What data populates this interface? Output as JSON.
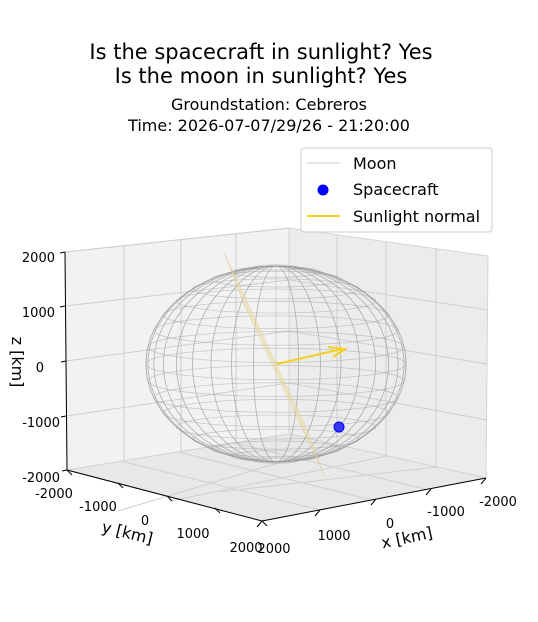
{
  "chart_data": {
    "type": "scatter",
    "projection": "3d",
    "title_line1": "Is the spacecraft in sunlight? Yes",
    "title_line2": "Is the moon in sunlight? Yes",
    "subtitle_line1": "Groundstation: Cebreros",
    "subtitle_line2": "Time: 2026-07-07/29/26 - 21:20:00",
    "xlabel": "x [km]",
    "ylabel": "y [km]",
    "zlabel": "z [km]",
    "xlim": [
      -2000,
      2000
    ],
    "ylim": [
      -2000,
      2000
    ],
    "zlim": [
      -2000,
      2000
    ],
    "x_ticks": [
      "-2000",
      "-1000",
      "0",
      "1000",
      "2000"
    ],
    "y_ticks": [
      "-2000",
      "-1000",
      "0",
      "1000",
      "2000"
    ],
    "z_ticks": [
      "-2000",
      "-1000",
      "0",
      "1000",
      "2000"
    ],
    "grid": true,
    "legend_position": "top-right",
    "legend": [
      {
        "label": "Moon",
        "marker": "line",
        "color": "#dddddd"
      },
      {
        "label": "Spacecraft",
        "marker": "dot",
        "color": "#0000ff"
      },
      {
        "label": "Sunlight normal",
        "marker": "line",
        "color": "#f5d020"
      }
    ],
    "moon": {
      "center": [
        0,
        0,
        0
      ],
      "radius_km": 1737
    },
    "spacecraft": {
      "x": 1200,
      "y": 900,
      "z": -1200
    },
    "sunlight_normal": {
      "origin": [
        0,
        0,
        0
      ],
      "direction": [
        -600,
        -1200,
        200
      ]
    }
  }
}
